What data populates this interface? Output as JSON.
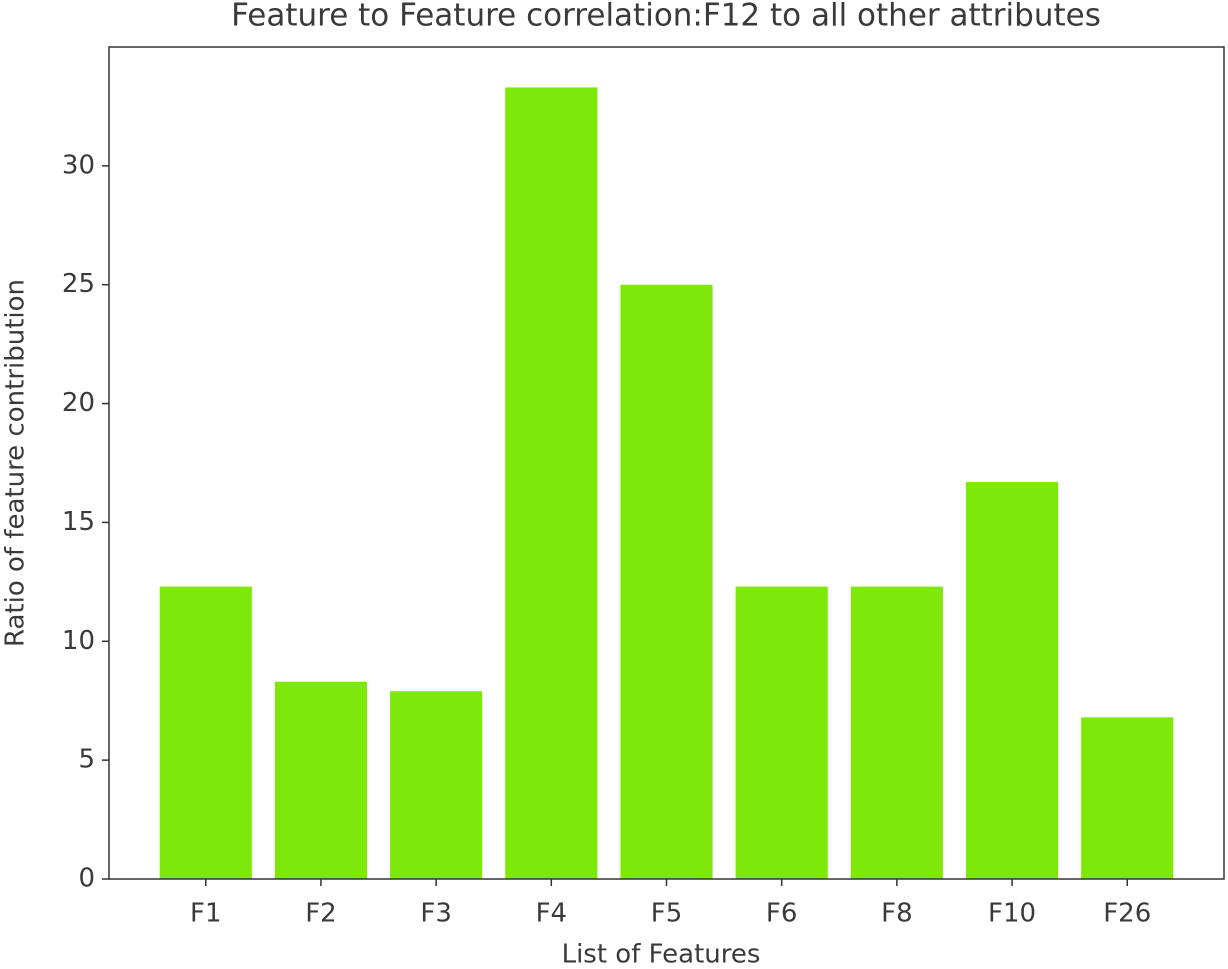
{
  "chart_data": {
    "type": "bar",
    "title": "Feature to Feature correlation:F12 to all other attributes",
    "xlabel": "List of Features",
    "ylabel": "Ratio of feature contribution",
    "categories": [
      "F1",
      "F2",
      "F3",
      "F4",
      "F5",
      "F6",
      "F8",
      "F10",
      "F26"
    ],
    "values": [
      12.3,
      8.3,
      7.9,
      33.3,
      25.0,
      12.3,
      12.3,
      16.7,
      6.8
    ],
    "color": "#7de809",
    "ylim": [
      0,
      35
    ],
    "yticks": [
      0,
      5,
      10,
      15,
      20,
      25,
      30
    ],
    "grid": false
  }
}
